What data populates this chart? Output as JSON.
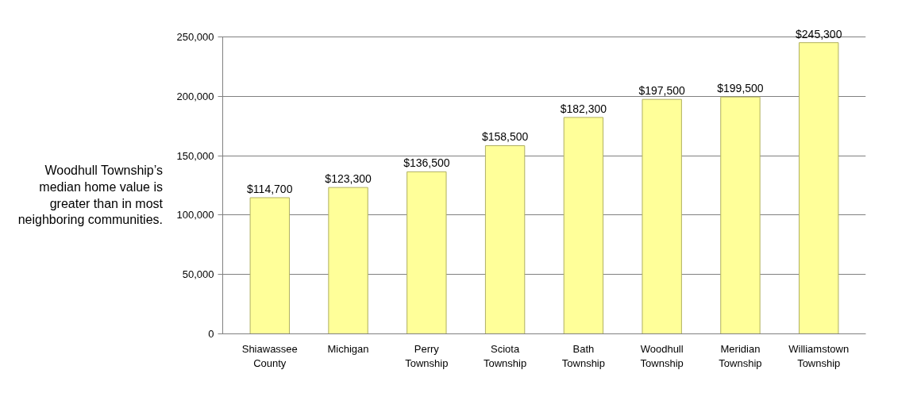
{
  "chart_data": {
    "type": "bar",
    "categories": [
      "Shiawassee County",
      "Michigan",
      "Perry Township",
      "Sciota Township",
      "Bath Township",
      "Woodhull Township",
      "Meridian Township",
      "Williamstown Township"
    ],
    "values": [
      114700,
      123300,
      136500,
      158500,
      182300,
      197500,
      199500,
      245300
    ],
    "value_labels": [
      "$114,700",
      "$123,300",
      "$136,500",
      "$158,500",
      "$182,300",
      "$197,500",
      "$199,500",
      "$245,300"
    ],
    "color": "#ffff99",
    "ylim": [
      0,
      250000
    ],
    "yticks": [
      {
        "value": 0,
        "label": "0"
      },
      {
        "value": 50000,
        "label": "50,000"
      },
      {
        "value": 100000,
        "label": "100,000"
      },
      {
        "value": 150000,
        "label": "150,000"
      },
      {
        "value": 200000,
        "label": "200,000"
      },
      {
        "value": 250000,
        "label": "250,000"
      }
    ],
    "grid": "y",
    "annotations": [
      "Woodhull Township’s median home value is greater than in most neighboring communities."
    ]
  }
}
